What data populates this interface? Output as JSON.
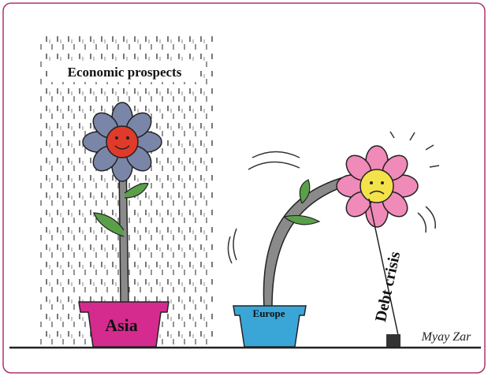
{
  "cartoon": {
    "rain_label": "Economic prospects",
    "left_pot_label": "Asia",
    "right_pot_label": "Europe",
    "rope_label": "Debt crisis",
    "signature": "Myay Zar"
  }
}
